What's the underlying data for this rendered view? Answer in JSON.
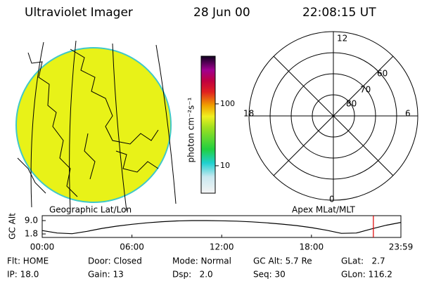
{
  "header": {
    "title": "Ultraviolet Imager",
    "date": "28 Jun 00",
    "time": "22:08:15 UT"
  },
  "colorbar": {
    "label": "photon cm⁻²s⁻¹",
    "lim": [
      3.6,
      590
    ],
    "log": true,
    "ticks": [
      100,
      10
    ]
  },
  "polar": {
    "mlt_labels": [
      "12",
      "6",
      "0",
      "18"
    ],
    "lat_labels": [
      "60",
      "70",
      "80"
    ]
  },
  "map_labels": {
    "left": "Geographic Lat/Lon",
    "right": "Apex MLat/MLT"
  },
  "chart_data": {
    "type": "line",
    "ylabel": "GC Alt",
    "color": "#000",
    "x": [
      0,
      1,
      2,
      3,
      4,
      5,
      6,
      7,
      8,
      9,
      10,
      11,
      12,
      13,
      14,
      15,
      16,
      17,
      18,
      19,
      20,
      21,
      22,
      23,
      23.98
    ],
    "values": [
      3.6,
      2.3,
      1.9,
      3.2,
      4.8,
      6.0,
      7.0,
      7.8,
      8.4,
      8.8,
      9.0,
      9.0,
      8.9,
      8.7,
      8.3,
      7.8,
      7.1,
      6.3,
      5.2,
      3.8,
      2.1,
      2.3,
      4.5,
      6.5,
      8.0
    ],
    "xlim": [
      0,
      23.98
    ],
    "ylim": [
      -0.1,
      11.65
    ],
    "xticks": [
      {
        "value": 0,
        "label": "00:00"
      },
      {
        "value": 6,
        "label": "06:00"
      },
      {
        "value": 12,
        "label": "12:00"
      },
      {
        "value": 18,
        "label": "18:00"
      },
      {
        "value": 23.98,
        "label": "23:59"
      }
    ],
    "yticks": [
      {
        "value": 9,
        "label": "9.0"
      },
      {
        "value": 1.8,
        "label": "1.8"
      }
    ],
    "marker": {
      "x": 22.14,
      "color": "#e00000"
    }
  },
  "footer": [
    [
      "Flt: HOME",
      "Door: Closed",
      "Mode: Normal",
      "GC Alt: 5.7 Re",
      "GLat:   2.7"
    ],
    [
      "IP: 18.0",
      "Gain: 13",
      "Dsp:   2.0",
      "Seq: 30",
      "GLon: 116.2"
    ]
  ]
}
